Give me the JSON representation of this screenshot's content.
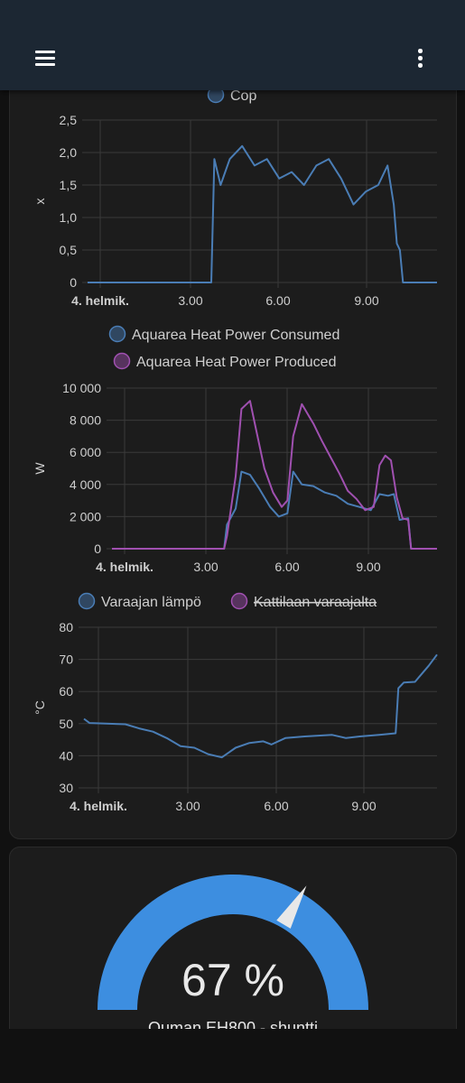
{
  "topbar": {
    "menu_icon": "menu-icon",
    "more_icon": "more-vert-icon"
  },
  "chart_data": [
    {
      "type": "line",
      "series": [
        {
          "name": "Cop",
          "color": "#4a7db5",
          "points": [
            [
              0.0,
              0
            ],
            [
              4.0,
              0
            ],
            [
              4.1,
              1.9
            ],
            [
              4.3,
              1.5
            ],
            [
              4.6,
              1.9
            ],
            [
              5.0,
              2.1
            ],
            [
              5.4,
              1.8
            ],
            [
              5.8,
              1.9
            ],
            [
              6.2,
              1.6
            ],
            [
              6.6,
              1.7
            ],
            [
              7.0,
              1.5
            ],
            [
              7.4,
              1.8
            ],
            [
              7.8,
              1.9
            ],
            [
              8.2,
              1.6
            ],
            [
              8.6,
              1.2
            ],
            [
              9.0,
              1.4
            ],
            [
              9.4,
              1.5
            ],
            [
              9.7,
              1.8
            ],
            [
              9.9,
              1.2
            ],
            [
              10.0,
              0.6
            ],
            [
              10.1,
              0.5
            ],
            [
              10.2,
              0
            ],
            [
              11.3,
              0
            ]
          ]
        }
      ],
      "ylabel": "x",
      "x_ticks": [
        "4. helmik.",
        "3.00",
        "6.00",
        "9.00"
      ],
      "y_ticks": [
        "0",
        "0,5",
        "1,0",
        "1,5",
        "2,0",
        "2,5"
      ],
      "xlim": [
        0,
        11.3
      ],
      "ylim": [
        0,
        2.5
      ],
      "grid": true,
      "legend": "top"
    },
    {
      "type": "line",
      "series": [
        {
          "name": "Aquarea Heat Power Consumed",
          "color": "#4a7db5",
          "points": [
            [
              0.0,
              0
            ],
            [
              3.9,
              0
            ],
            [
              4.0,
              1500
            ],
            [
              4.3,
              2500
            ],
            [
              4.5,
              4800
            ],
            [
              4.8,
              4600
            ],
            [
              5.1,
              3800
            ],
            [
              5.5,
              2600
            ],
            [
              5.8,
              2000
            ],
            [
              6.1,
              2200
            ],
            [
              6.3,
              4800
            ],
            [
              6.6,
              4000
            ],
            [
              7.0,
              3900
            ],
            [
              7.4,
              3500
            ],
            [
              7.8,
              3300
            ],
            [
              8.2,
              2800
            ],
            [
              8.6,
              2600
            ],
            [
              9.0,
              2400
            ],
            [
              9.3,
              3400
            ],
            [
              9.6,
              3300
            ],
            [
              9.8,
              3400
            ],
            [
              10.0,
              1800
            ],
            [
              10.3,
              1900
            ],
            [
              10.4,
              0
            ],
            [
              11.3,
              0
            ]
          ]
        },
        {
          "name": "Aquarea Heat Power Produced",
          "color": "#a050b0",
          "points": [
            [
              0.0,
              0
            ],
            [
              3.9,
              0
            ],
            [
              4.0,
              800
            ],
            [
              4.3,
              4500
            ],
            [
              4.5,
              8700
            ],
            [
              4.8,
              9200
            ],
            [
              5.0,
              7500
            ],
            [
              5.3,
              5000
            ],
            [
              5.6,
              3500
            ],
            [
              5.9,
              2600
            ],
            [
              6.1,
              3000
            ],
            [
              6.3,
              7000
            ],
            [
              6.6,
              9000
            ],
            [
              7.0,
              7800
            ],
            [
              7.3,
              6700
            ],
            [
              7.6,
              5700
            ],
            [
              7.9,
              4700
            ],
            [
              8.2,
              3600
            ],
            [
              8.5,
              3100
            ],
            [
              8.8,
              2400
            ],
            [
              9.1,
              2600
            ],
            [
              9.3,
              5200
            ],
            [
              9.5,
              5800
            ],
            [
              9.7,
              5500
            ],
            [
              9.9,
              3200
            ],
            [
              10.1,
              1900
            ],
            [
              10.3,
              1800
            ],
            [
              10.4,
              0
            ],
            [
              11.3,
              0
            ]
          ]
        }
      ],
      "ylabel": "W",
      "x_ticks": [
        "4. helmik.",
        "3.00",
        "6.00",
        "9.00"
      ],
      "y_ticks": [
        "0",
        "2 000",
        "4 000",
        "6 000",
        "8 000",
        "10 000"
      ],
      "xlim": [
        0,
        11.3
      ],
      "ylim": [
        0,
        10000
      ],
      "grid": true,
      "legend": "top"
    },
    {
      "type": "line",
      "series": [
        {
          "name": "Varaajan lämpö",
          "color": "#4a7db5",
          "hidden": false,
          "points": [
            [
              -0.5,
              51.5
            ],
            [
              -0.3,
              50.2
            ],
            [
              1.0,
              49.8
            ],
            [
              1.5,
              48.5
            ],
            [
              2.0,
              47.5
            ],
            [
              2.5,
              45.5
            ],
            [
              3.0,
              43.0
            ],
            [
              3.5,
              42.5
            ],
            [
              4.0,
              40.5
            ],
            [
              4.5,
              39.5
            ],
            [
              5.0,
              42.5
            ],
            [
              5.5,
              44.0
            ],
            [
              6.0,
              44.5
            ],
            [
              6.3,
              43.5
            ],
            [
              6.8,
              45.5
            ],
            [
              7.5,
              46.0
            ],
            [
              8.5,
              46.5
            ],
            [
              9.0,
              45.5
            ],
            [
              9.5,
              46.0
            ],
            [
              10.2,
              46.5
            ],
            [
              10.8,
              47.0
            ],
            [
              10.9,
              61.0
            ],
            [
              11.1,
              62.8
            ],
            [
              11.5,
              63.0
            ],
            [
              11.8,
              66.0
            ],
            [
              12.0,
              68.0
            ],
            [
              12.3,
              71.5
            ]
          ]
        },
        {
          "name": "Kattilaan varaajalta",
          "color": "#a050b0",
          "hidden": true,
          "points": []
        }
      ],
      "ylabel": "°C",
      "x_ticks": [
        "4. helmik.",
        "3.00",
        "6.00",
        "9.00"
      ],
      "y_ticks": [
        "30",
        "40",
        "50",
        "60",
        "70",
        "80"
      ],
      "xlim": [
        -0.5,
        12.3
      ],
      "ylim": [
        30,
        80
      ],
      "grid": true,
      "legend": "top"
    }
  ],
  "gauge": {
    "value": "67 %",
    "percent": 67,
    "name": "Ouman EH800 - shuntti",
    "color": "#3d8ee0",
    "track_color": "#2c2c2c"
  }
}
